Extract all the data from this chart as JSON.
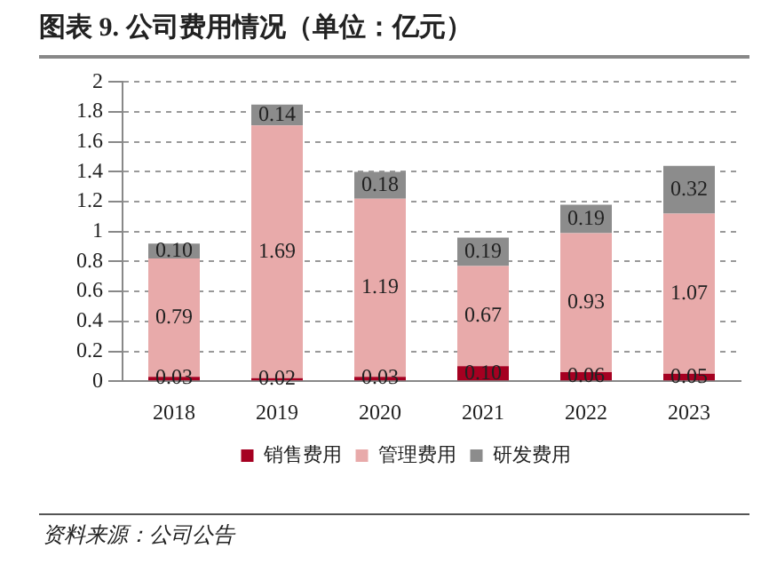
{
  "chart_data": {
    "type": "bar",
    "title": "图表 9. 公司费用情况（单位：亿元）",
    "stacked": true,
    "categories": [
      "2018",
      "2019",
      "2020",
      "2021",
      "2022",
      "2023"
    ],
    "series": [
      {
        "name": "销售费用",
        "color": "#a50021",
        "values": [
          0.03,
          0.02,
          0.03,
          0.1,
          0.06,
          0.05
        ],
        "value_labels": [
          "0.03",
          "0.02",
          "0.03",
          "0.10",
          "0.06",
          "0.05"
        ]
      },
      {
        "name": "管理费用",
        "color": "#e8aaaa",
        "values": [
          0.79,
          1.69,
          1.19,
          0.67,
          0.93,
          1.07
        ],
        "value_labels": [
          "0.79",
          "1.69",
          "1.19",
          "0.67",
          "0.93",
          "1.07"
        ]
      },
      {
        "name": "研发费用",
        "color": "#8c8c8c",
        "values": [
          0.1,
          0.14,
          0.18,
          0.19,
          0.19,
          0.32
        ],
        "value_labels": [
          "0.10",
          "0.14",
          "0.18",
          "0.19",
          "0.19",
          "0.32"
        ]
      }
    ],
    "ylim": [
      0,
      2
    ],
    "yticks": [
      0,
      0.2,
      0.4,
      0.6,
      0.8,
      1,
      1.2,
      1.4,
      1.6,
      1.8,
      2
    ],
    "grid": "y",
    "legend": "bottom",
    "annotations": [
      "资料来源：公司公告"
    ]
  }
}
